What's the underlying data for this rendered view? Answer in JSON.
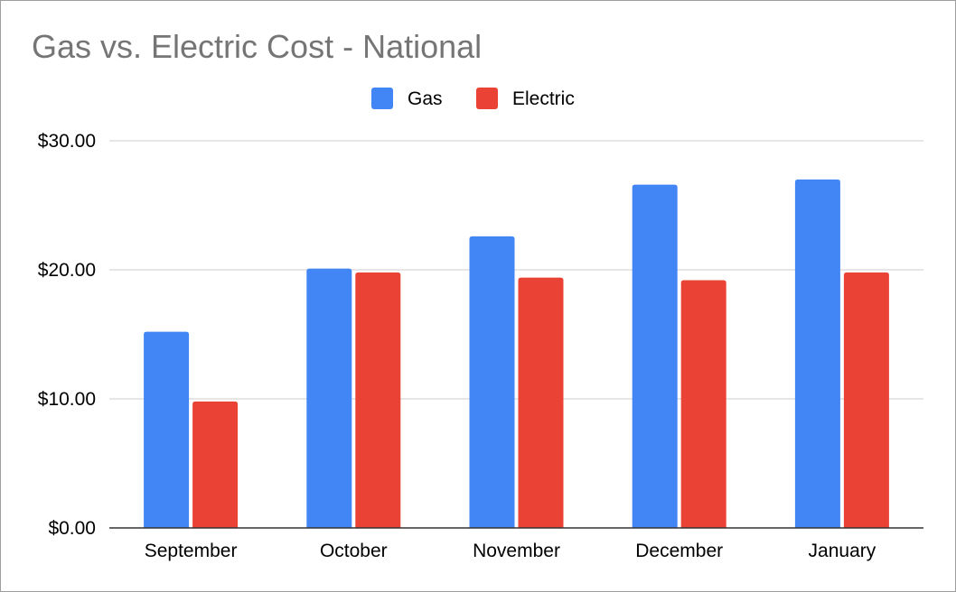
{
  "chart_data": {
    "type": "bar",
    "title": "Gas vs. Electric Cost - National",
    "categories": [
      "September",
      "October",
      "November",
      "December",
      "January"
    ],
    "series": [
      {
        "name": "Gas",
        "color": "#4285f4",
        "values": [
          15.2,
          20.1,
          22.6,
          26.6,
          27.0
        ]
      },
      {
        "name": "Electric",
        "color": "#ea4335",
        "values": [
          9.8,
          19.8,
          19.4,
          19.2,
          19.8
        ]
      }
    ],
    "ylim": [
      0,
      30
    ],
    "yticks": [
      {
        "value": 0,
        "label": "$0.00"
      },
      {
        "value": 10,
        "label": "$10.00"
      },
      {
        "value": 20,
        "label": "$20.00"
      },
      {
        "value": 30,
        "label": "$30.00"
      }
    ],
    "grid": true,
    "legend_position": "top-center",
    "xlabel": "",
    "ylabel": ""
  }
}
